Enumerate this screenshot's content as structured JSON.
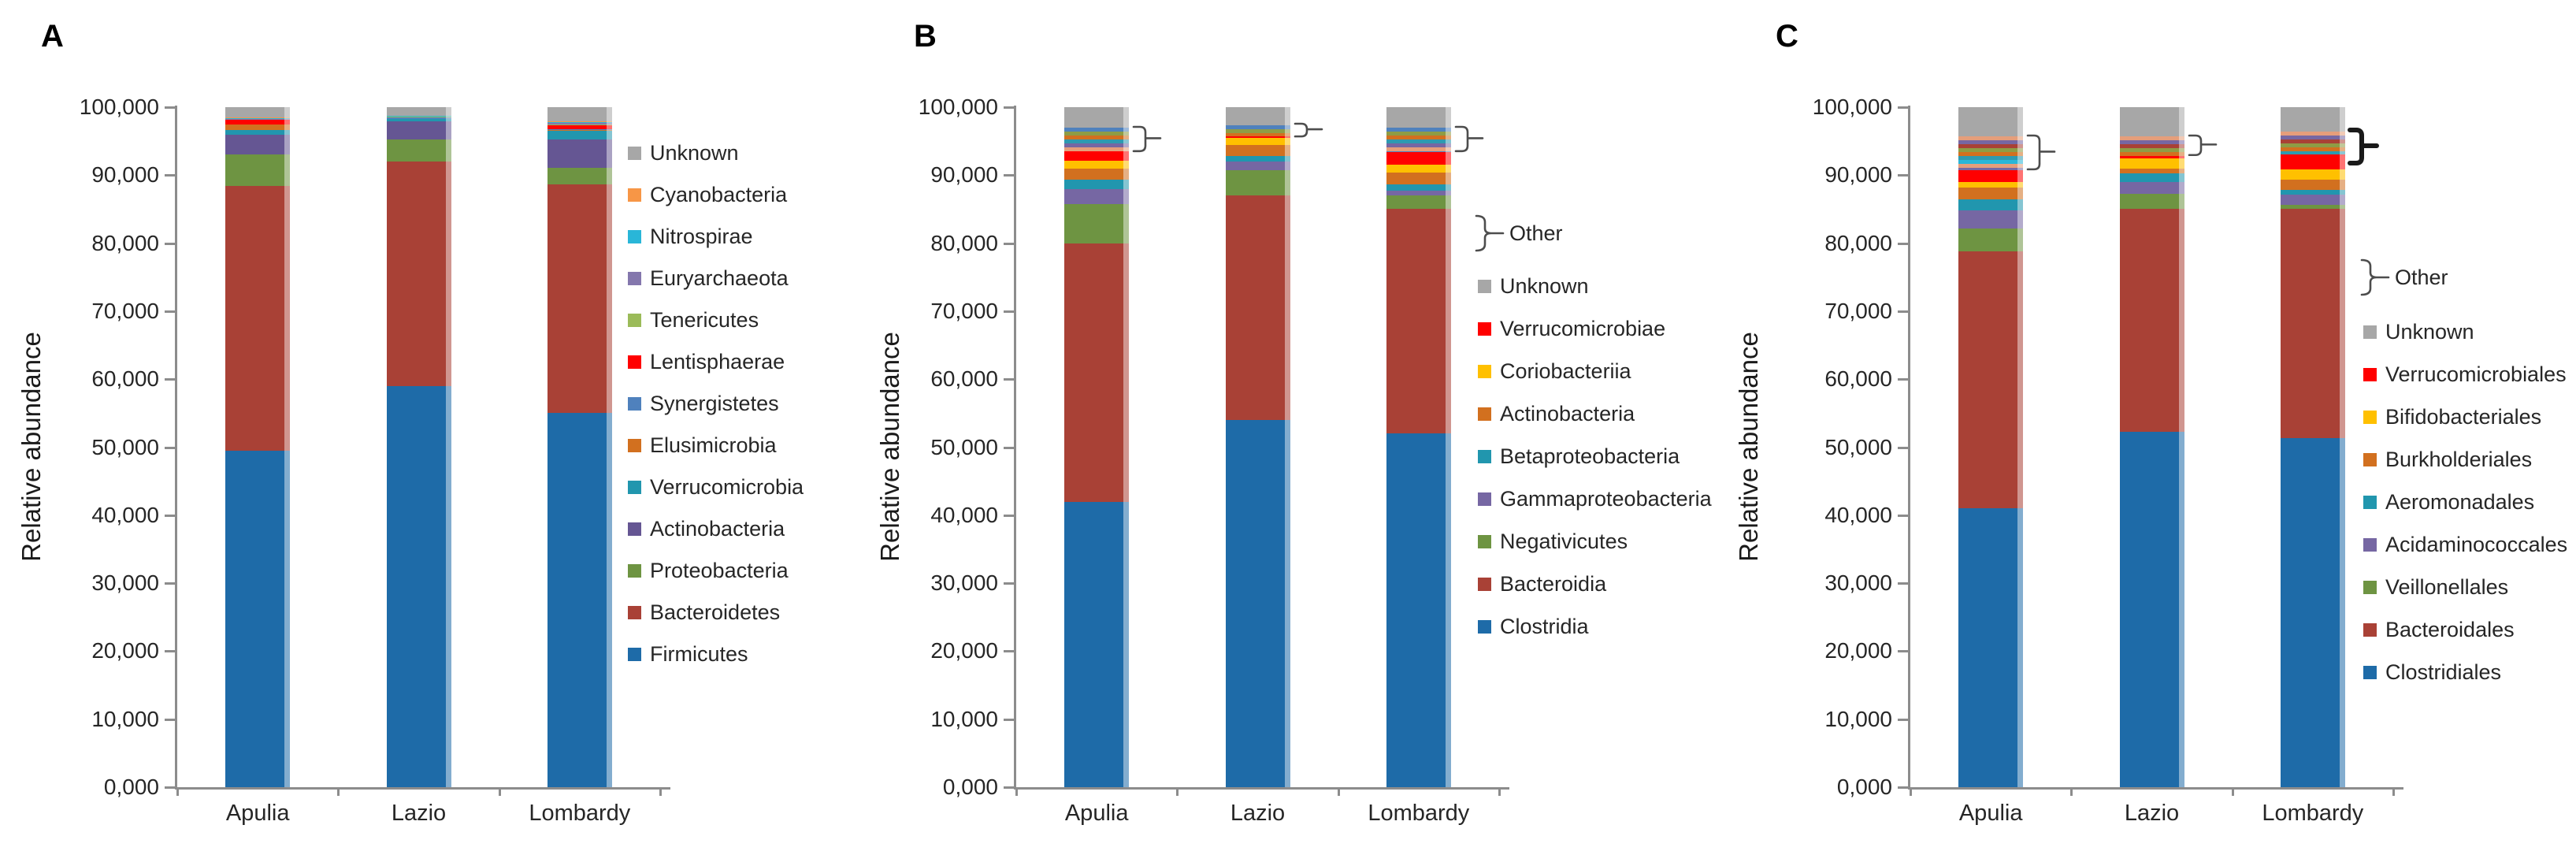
{
  "figure": {
    "background": "#ffffff"
  },
  "colors": {
    "axis": "#8C8C8C",
    "text": "#262626",
    "bracket": "#4D4D4D",
    "bold_bracket": "#1a1a1a"
  },
  "chart_data": [
    {
      "type": "bar",
      "stacked": true,
      "letter": "A",
      "title": "",
      "y_axis": {
        "title": "Relative abundance",
        "min": 0,
        "max": 100000,
        "ticks": [
          "100,000",
          "90,000",
          "80,000",
          "70,000",
          "60,000",
          "50,000",
          "40,000",
          "30,000",
          "20,000",
          "10,000",
          "0,000"
        ]
      },
      "x_categories": [
        "Apulia",
        "Lazio",
        "Lombardy"
      ],
      "series": [
        {
          "name": "Firmicutes",
          "color": "#1E6BA8",
          "values": [
            49500,
            59000,
            55000
          ]
        },
        {
          "name": "Bacteroidetes",
          "color": "#A94136",
          "values": [
            38900,
            33000,
            33700
          ]
        },
        {
          "name": "Proteobacteria",
          "color": "#6E9442",
          "values": [
            4700,
            3200,
            2400
          ]
        },
        {
          "name": "Actinobacteria",
          "color": "#655693",
          "values": [
            2800,
            2700,
            4100
          ]
        },
        {
          "name": "Verrucomicrobia",
          "color": "#2196AE",
          "values": [
            800,
            400,
            1300
          ]
        },
        {
          "name": "Elusimicrobia",
          "color": "#D2701F",
          "values": [
            700,
            0,
            200
          ]
        },
        {
          "name": "Synergistetes",
          "color": "#4F81BD",
          "values": [
            100,
            200,
            100
          ]
        },
        {
          "name": "Lentisphaerae",
          "color": "#FF0000",
          "values": [
            600,
            0,
            500
          ]
        },
        {
          "name": "Tenericutes",
          "color": "#9BBB59",
          "values": [
            100,
            100,
            100
          ]
        },
        {
          "name": "Euryarchaeota",
          "color": "#8477AD",
          "values": [
            100,
            0,
            300
          ]
        },
        {
          "name": "Nitrospirae",
          "color": "#29B6D8",
          "values": [
            100,
            100,
            100
          ]
        },
        {
          "name": "Cyanobacteria",
          "color": "#F79646",
          "values": [
            100,
            0,
            100
          ]
        },
        {
          "name": "Unknown",
          "color": "#A7A7A7",
          "values": [
            1500,
            1300,
            2100
          ]
        }
      ],
      "brackets": []
    },
    {
      "type": "bar",
      "stacked": true,
      "letter": "B",
      "title": "",
      "y_axis": {
        "title": "Relative abundance",
        "min": 0,
        "max": 100000,
        "ticks": [
          "100,000",
          "90,000",
          "80,000",
          "70,000",
          "60,000",
          "50,000",
          "40,000",
          "30,000",
          "20,000",
          "10,000",
          "0,000"
        ]
      },
      "x_categories": [
        "Apulia",
        "Lazio",
        "Lombardy"
      ],
      "series": [
        {
          "name": "Clostridia",
          "color": "#1E6BA8",
          "values": [
            42000,
            54000,
            52000
          ]
        },
        {
          "name": "Bacteroidia",
          "color": "#A94136",
          "values": [
            38000,
            33000,
            33000
          ]
        },
        {
          "name": "Negativicutes",
          "color": "#6E9442",
          "values": [
            5800,
            3700,
            2000
          ]
        },
        {
          "name": "Gammaproteobacteria",
          "color": "#7667A3",
          "values": [
            2200,
            1300,
            700
          ]
        },
        {
          "name": "Betaproteobacteria",
          "color": "#2196AE",
          "values": [
            1400,
            800,
            900
          ]
        },
        {
          "name": "Actinobacteria",
          "color": "#D2701F",
          "values": [
            1600,
            1700,
            1800
          ]
        },
        {
          "name": "Coriobacteriia",
          "color": "#FFC000",
          "values": [
            1100,
            1000,
            1100
          ]
        },
        {
          "name": "Verrucomicrobiae",
          "color": "#FF0000",
          "values": [
            1400,
            200,
            1900
          ]
        },
        {
          "name": "Other",
          "stripes": [
            "#4F81BD",
            "#8E9C45",
            "#D2701F",
            "#2E9AB0",
            "#7667A3",
            "#E59E7B"
          ],
          "values": [
            3500,
            1600,
            3600
          ]
        },
        {
          "name": "Unknown",
          "color": "#A7A7A7",
          "values": [
            3000,
            2700,
            3000
          ]
        }
      ],
      "brackets": [
        {
          "category_index": 0,
          "from": 93300,
          "to": 97100,
          "bold": false
        },
        {
          "category_index": 1,
          "from": 95500,
          "to": 97600,
          "bold": false
        },
        {
          "category_index": 2,
          "from": 93300,
          "to": 97100,
          "bold": false
        }
      ]
    },
    {
      "type": "bar",
      "stacked": true,
      "letter": "C",
      "title": "",
      "y_axis": {
        "title": "Relative abundance",
        "min": 0,
        "max": 100000,
        "ticks": [
          "100,000",
          "90,000",
          "80,000",
          "70,000",
          "60,000",
          "50,000",
          "40,000",
          "30,000",
          "20,000",
          "10,000",
          "0,000"
        ]
      },
      "x_categories": [
        "Apulia",
        "Lazio",
        "Lombardy"
      ],
      "series": [
        {
          "name": "Clostridiales",
          "color": "#1E6BA8",
          "values": [
            41000,
            52300,
            51300
          ]
        },
        {
          "name": "Bacteroidales",
          "color": "#A94136",
          "values": [
            37800,
            32800,
            33800
          ]
        },
        {
          "name": "Veillonellales",
          "color": "#6E9442",
          "values": [
            3400,
            2200,
            500
          ]
        },
        {
          "name": "Acidaminococcales",
          "color": "#7667A3",
          "values": [
            2600,
            1700,
            1500
          ]
        },
        {
          "name": "Aeromonadales",
          "color": "#2196AE",
          "values": [
            1700,
            1300,
            700
          ]
        },
        {
          "name": "Burkholderiales",
          "color": "#D2701F",
          "values": [
            1700,
            700,
            1600
          ]
        },
        {
          "name": "Bifidobacteriales",
          "color": "#FFC000",
          "values": [
            800,
            1500,
            1500
          ]
        },
        {
          "name": "Verrucomicrobiales",
          "color": "#FF0000",
          "values": [
            1700,
            300,
            2100
          ]
        },
        {
          "name": "Other",
          "stripes": [
            "#E59E7B",
            "#7667A3",
            "#A94136",
            "#8E9C45",
            "#D2701F",
            "#2E9AB0",
            "#29B6D8"
          ],
          "values": [
            5000,
            2900,
            3400
          ]
        },
        {
          "name": "Unknown",
          "color": "#A7A7A7",
          "values": [
            4300,
            4300,
            3600
          ]
        }
      ],
      "brackets": [
        {
          "category_index": 0,
          "from": 90600,
          "to": 95800,
          "bold": false
        },
        {
          "category_index": 1,
          "from": 92700,
          "to": 95800,
          "bold": false
        },
        {
          "category_index": 2,
          "from": 91500,
          "to": 96600,
          "bold": true
        }
      ]
    }
  ]
}
